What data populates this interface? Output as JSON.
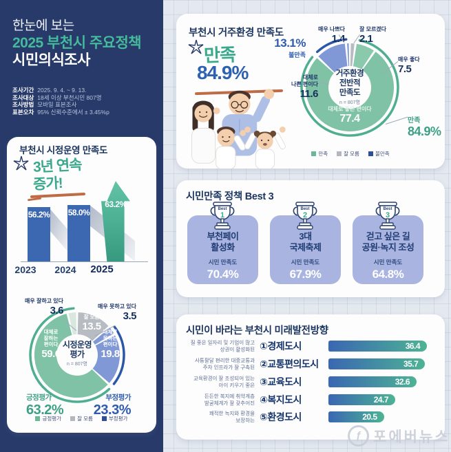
{
  "colors": {
    "navy_bg": "#273a6a",
    "accent_green": "#45bb9b",
    "accent_blue": "#2e62b1",
    "bar_blue": "#3c68b1",
    "donut_green": "#7fc2a5",
    "donut_green_light": "#8bc9ad",
    "donut_blue": "#8098d6",
    "donut_gray": "#b7bbc2",
    "arc_green": "#4fae90",
    "arc_blue": "#2b57a8",
    "lavender": "#a9b4e0",
    "underline_orange": "#bf6b45"
  },
  "header": {
    "kicker": "한눈에 보는",
    "title_line1": "2025 부천시 주요정책",
    "title_line2": "시민의식조사",
    "meta": [
      {
        "label": "조사기간",
        "value": "2025. 9. 4. ~ 9. 13."
      },
      {
        "label": "조사대상",
        "value": "18세 이상 부천시민 807명"
      },
      {
        "label": "조사방법",
        "value": "모바일 표본조사"
      },
      {
        "label": "표본오차",
        "value": "95% 신뢰수준에서 ± 3.45%p"
      }
    ]
  },
  "gov": {
    "title": "부천시 시정운영 만족도",
    "badge_line1": "3년 연속",
    "badge_line2": "증가!",
    "bars": [
      {
        "year": "2023",
        "value": "56.2%"
      },
      {
        "year": "2024",
        "value": "58.0%"
      },
      {
        "year": "2025",
        "value": "63.2%"
      }
    ],
    "donut": {
      "callout_left_label": "매우 잘하고 있다",
      "callout_left_value": "3.6",
      "callout_right_label": "매우 못하고 있다",
      "callout_right_value": "3.5",
      "seg_gray_label": "잘 모름",
      "seg_gray_value": "13.5",
      "seg_blue_lines": [
        "대체로",
        "못하는",
        "편이다"
      ],
      "seg_blue_value": "19.8",
      "seg_green_lines": [
        "대체로",
        "잘하는",
        "편이다"
      ],
      "seg_green_value": "59.6",
      "center_line1": "시정운영",
      "center_line2": "평가",
      "center_n": "n = 807명",
      "pos_label": "긍정평가",
      "pos_value": "63.2%",
      "neg_label": "부정평가",
      "neg_value": "23.3%",
      "legend": [
        "긍정평가",
        "잘 모름",
        "부정평가"
      ]
    }
  },
  "living": {
    "title": "부천시 거주환경 만족도",
    "headline_label": "만족",
    "headline_value": "84.9%",
    "donut": {
      "callout_bad_label": "매우 나쁘다",
      "callout_bad_value": "1.4",
      "callout_dk_label": "잘 모르겠다",
      "callout_dk_value": "2.1",
      "callout_good_label": "매우 좋다",
      "callout_good_value": "7.5",
      "callout_rb_line1": "대체로",
      "callout_rb_line2": "나쁜 편이다",
      "callout_rb_value": "11.6",
      "dissat_value": "13.1%",
      "dissat_label": "불만족",
      "seg_green_label": "대체로 좋은 편이다",
      "seg_green_value": "77.4",
      "center_line1": "거주환경",
      "center_line2": "전반적",
      "center_line3": "만족도",
      "center_n": "n = 807명",
      "sat_label": "만족",
      "sat_value": "84.9%",
      "legend": [
        "만족",
        "잘 모름",
        "불만족"
      ]
    }
  },
  "best": {
    "title": "시민만족 정책 Best 3",
    "trophy_label": "Best",
    "items": [
      {
        "rank": "1",
        "name_line1": "부천페이",
        "name_line2": "활성화",
        "metric": "시민 만족도",
        "value": "70.4%"
      },
      {
        "rank": "2",
        "name_line1": "3대",
        "name_line2": "국제축제",
        "metric": "시민 만족도",
        "value": "67.9%"
      },
      {
        "rank": "3",
        "name_line1": "걷고 싶은 길",
        "name_line2": "공원·녹지 조성",
        "metric": "시민 만족도",
        "value": "64.8%"
      }
    ]
  },
  "future": {
    "title": "시민이 바라는 부천시 미래발전방향",
    "items": [
      {
        "desc_line1": "질 좋은 일자리 및 기업이 많고",
        "desc_line2": "상권이 활성화된",
        "rank": "①",
        "label": "경제도시",
        "value": "36.4"
      },
      {
        "desc_line1": "사통팔달 편리한 대중교통과",
        "desc_line2": "주차 인프라가 잘 구축된",
        "rank": "②",
        "label": "교통편의도시",
        "value": "35.7"
      },
      {
        "desc_line1": "교육환경이 잘 조성되어 있는",
        "desc_line2": "아이 키우기 좋은",
        "rank": "③",
        "label": "교육도시",
        "value": "32.6"
      },
      {
        "desc_line1": "든든한 복지에 취약계층",
        "desc_line2": "발굴체계가 잘 갖추어진",
        "rank": "④",
        "label": "복지도시",
        "value": "24.7"
      },
      {
        "desc_line1": "쾌적한 녹지와 환경을",
        "desc_line2": "보장하는",
        "rank": "⑤",
        "label": "환경도시",
        "value": "20.5"
      }
    ]
  },
  "watermark": {
    "logo_glyph": "ƒ",
    "text": "포에버뉴스"
  },
  "chart_data": [
    {
      "type": "bar",
      "title": "부천시 시정운영 만족도",
      "categories": [
        "2023",
        "2024",
        "2025"
      ],
      "values": [
        56.2,
        58.0,
        63.2
      ],
      "unit": "percent",
      "annotation": "3년 연속 증가!",
      "ylim": [
        0,
        70
      ]
    },
    {
      "type": "pie",
      "title": "시정운영 평가",
      "sample": "n = 807명",
      "segments": [
        {
          "label": "잘 모름",
          "value": 13.5
        },
        {
          "label": "매우 못하고 있다",
          "value": 3.5
        },
        {
          "label": "대체로 못하는 편이다",
          "value": 19.8
        },
        {
          "label": "대체로 잘하는 편이다",
          "value": 59.6
        },
        {
          "label": "매우 잘하고 있다",
          "value": 3.6
        }
      ],
      "summary": [
        {
          "label": "긍정평가",
          "value": 63.2
        },
        {
          "label": "부정평가",
          "value": 23.3
        }
      ],
      "legend": [
        "긍정평가",
        "잘 모름",
        "부정평가"
      ]
    },
    {
      "type": "pie",
      "title": "거주환경 전반적 만족도",
      "sample": "n = 807명",
      "segments": [
        {
          "label": "잘 모르겠다",
          "value": 2.1
        },
        {
          "label": "매우 좋다",
          "value": 7.5
        },
        {
          "label": "대체로 좋은 편이다",
          "value": 77.4
        },
        {
          "label": "대체로 나쁜 편이다",
          "value": 11.6
        },
        {
          "label": "매우 나쁘다",
          "value": 1.4
        }
      ],
      "summary": [
        {
          "label": "만족",
          "value": 84.9
        },
        {
          "label": "불만족",
          "value": 13.1
        }
      ],
      "legend": [
        "만족",
        "잘 모름",
        "불만족"
      ]
    },
    {
      "type": "bar",
      "orientation": "horizontal",
      "title": "시민이 바라는 부천시 미래발전방향",
      "categories": [
        "경제도시",
        "교통편의도시",
        "교육도시",
        "복지도시",
        "환경도시"
      ],
      "values": [
        36.4,
        35.7,
        32.6,
        24.7,
        20.5
      ],
      "xlim": [
        0,
        40
      ]
    },
    {
      "type": "bar",
      "title": "시민만족 정책 Best 3",
      "categories": [
        "부천페이 활성화",
        "3대 국제축제",
        "걷고 싶은 길 공원·녹지 조성"
      ],
      "values": [
        70.4,
        67.9,
        64.8
      ],
      "unit": "percent"
    }
  ]
}
